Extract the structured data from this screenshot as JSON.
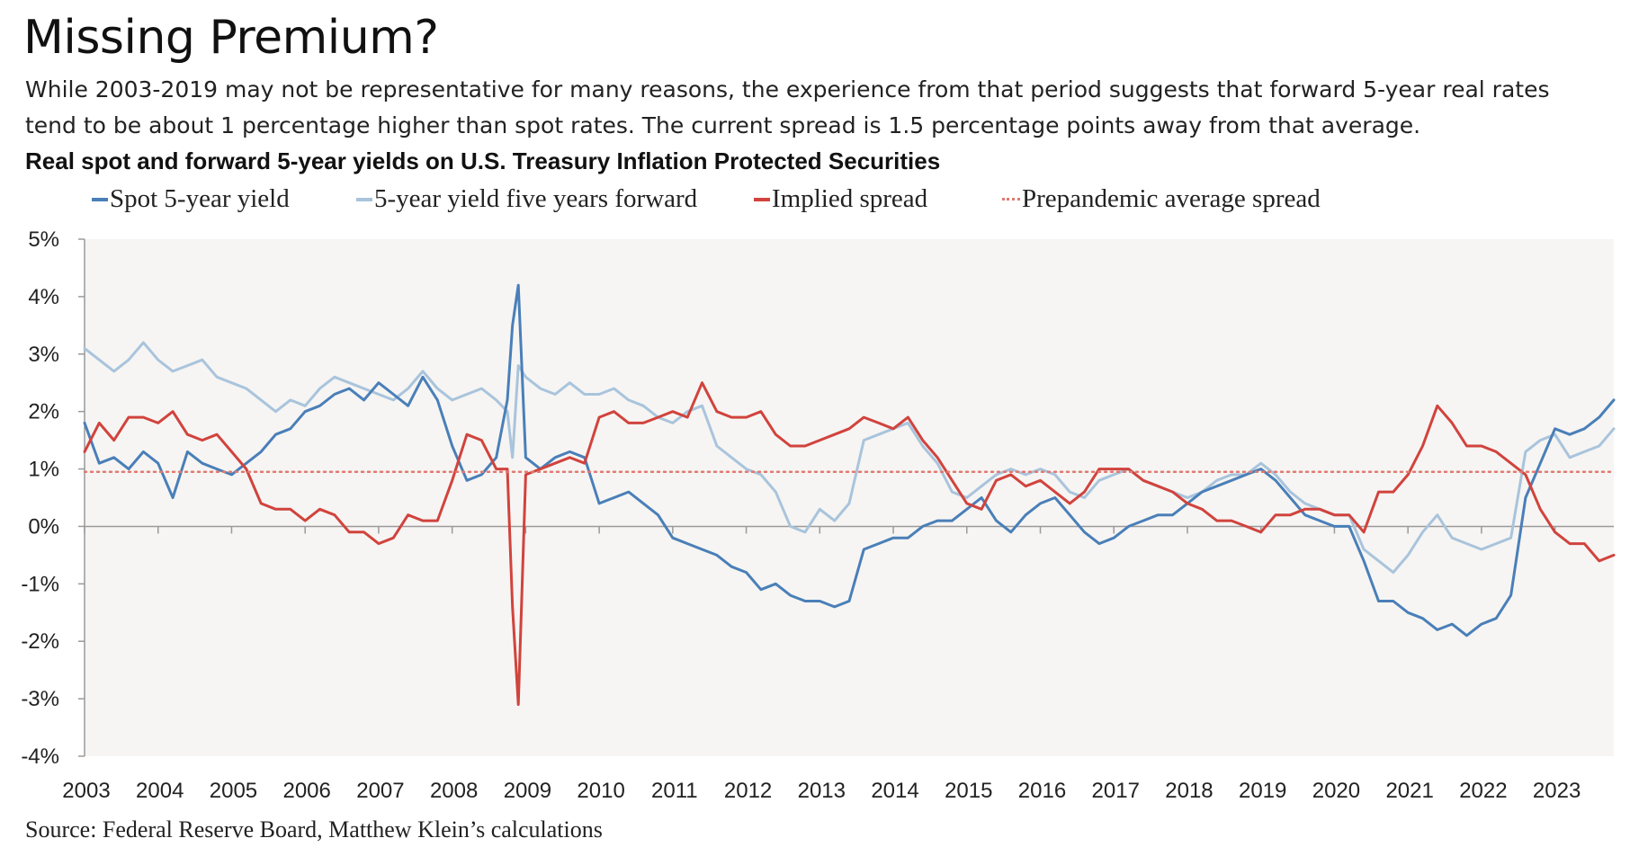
{
  "header": {
    "title": "Missing Premium?",
    "subtitle_lines": [
      "While 2003-2019 may not be representative for many reasons, the experience from that period suggests that forward 5-year real rates",
      "tend to be about 1 percentage higher than spot rates. The current spread is 1.5 percentage points away from that average."
    ]
  },
  "source": "Source: Federal Reserve Board, Matthew Klein’s calculations",
  "chart_data": {
    "type": "line",
    "title": "Real spot and forward 5-year yields on U.S. Treasury Inflation Protected Securities",
    "ylim": [
      -4,
      5
    ],
    "xlim": [
      2003,
      2023.8
    ],
    "y_ticks": [
      5,
      4,
      3,
      2,
      1,
      0,
      -1,
      -2,
      -3,
      -4
    ],
    "y_tick_labels": [
      "5%",
      "4%",
      "3%",
      "2%",
      "1%",
      "0%",
      "-1%",
      "-2%",
      "-3%",
      "-4%"
    ],
    "x_ticks": [
      2003,
      2004,
      2005,
      2006,
      2007,
      2008,
      2009,
      2010,
      2011,
      2012,
      2013,
      2014,
      2015,
      2016,
      2017,
      2018,
      2019,
      2020,
      2021,
      2022,
      2023
    ],
    "x_tick_labels": [
      "2003",
      "2004",
      "2005",
      "2006",
      "2007",
      "2008",
      "2009",
      "2010",
      "2011",
      "2012",
      "2013",
      "2014",
      "2015",
      "2016",
      "2017",
      "2018",
      "2019",
      "2020",
      "2021",
      "2022",
      "2023"
    ],
    "grid": false,
    "legend_position": "top",
    "series": [
      {
        "name": "Spot 5-year yield",
        "color": "#4a7fb8",
        "style": "solid",
        "x": [
          2003.0,
          2003.2,
          2003.4,
          2003.6,
          2003.8,
          2004.0,
          2004.2,
          2004.4,
          2004.6,
          2004.8,
          2005.0,
          2005.2,
          2005.4,
          2005.6,
          2005.8,
          2006.0,
          2006.2,
          2006.4,
          2006.6,
          2006.8,
          2007.0,
          2007.2,
          2007.4,
          2007.6,
          2007.8,
          2008.0,
          2008.2,
          2008.4,
          2008.6,
          2008.75,
          2008.82,
          2008.9,
          2009.0,
          2009.2,
          2009.4,
          2009.6,
          2009.8,
          2010.0,
          2010.2,
          2010.4,
          2010.6,
          2010.8,
          2011.0,
          2011.2,
          2011.4,
          2011.6,
          2011.8,
          2012.0,
          2012.2,
          2012.4,
          2012.6,
          2012.8,
          2013.0,
          2013.2,
          2013.4,
          2013.6,
          2013.8,
          2014.0,
          2014.2,
          2014.4,
          2014.6,
          2014.8,
          2015.0,
          2015.2,
          2015.4,
          2015.6,
          2015.8,
          2016.0,
          2016.2,
          2016.4,
          2016.6,
          2016.8,
          2017.0,
          2017.2,
          2017.4,
          2017.6,
          2017.8,
          2018.0,
          2018.2,
          2018.4,
          2018.6,
          2018.8,
          2019.0,
          2019.2,
          2019.4,
          2019.6,
          2019.8,
          2020.0,
          2020.2,
          2020.4,
          2020.6,
          2020.8,
          2021.0,
          2021.2,
          2021.4,
          2021.6,
          2021.8,
          2022.0,
          2022.2,
          2022.4,
          2022.6,
          2022.8,
          2023.0,
          2023.2,
          2023.4,
          2023.6,
          2023.8
        ],
        "y": [
          1.8,
          1.1,
          1.2,
          1.0,
          1.3,
          1.1,
          0.5,
          1.3,
          1.1,
          1.0,
          0.9,
          1.1,
          1.3,
          1.6,
          1.7,
          2.0,
          2.1,
          2.3,
          2.4,
          2.2,
          2.5,
          2.3,
          2.1,
          2.6,
          2.2,
          1.4,
          0.8,
          0.9,
          1.2,
          2.2,
          3.5,
          4.2,
          1.2,
          1.0,
          1.2,
          1.3,
          1.2,
          0.4,
          0.5,
          0.6,
          0.4,
          0.2,
          -0.2,
          -0.3,
          -0.4,
          -0.5,
          -0.7,
          -0.8,
          -1.1,
          -1.0,
          -1.2,
          -1.3,
          -1.3,
          -1.4,
          -1.3,
          -0.4,
          -0.3,
          -0.2,
          -0.2,
          0.0,
          0.1,
          0.1,
          0.3,
          0.5,
          0.1,
          -0.1,
          0.2,
          0.4,
          0.5,
          0.2,
          -0.1,
          -0.3,
          -0.2,
          0.0,
          0.1,
          0.2,
          0.2,
          0.4,
          0.6,
          0.7,
          0.8,
          0.9,
          1.0,
          0.8,
          0.5,
          0.2,
          0.1,
          0.0,
          0.0,
          -0.6,
          -1.3,
          -1.3,
          -1.5,
          -1.6,
          -1.8,
          -1.7,
          -1.9,
          -1.7,
          -1.6,
          -1.2,
          0.5,
          1.1,
          1.7,
          1.6,
          1.7,
          1.9,
          2.2
        ]
      },
      {
        "name": "5-year yield five years forward",
        "color": "#a9c4dc",
        "style": "solid",
        "x": [
          2003.0,
          2003.2,
          2003.4,
          2003.6,
          2003.8,
          2004.0,
          2004.2,
          2004.4,
          2004.6,
          2004.8,
          2005.0,
          2005.2,
          2005.4,
          2005.6,
          2005.8,
          2006.0,
          2006.2,
          2006.4,
          2006.6,
          2006.8,
          2007.0,
          2007.2,
          2007.4,
          2007.6,
          2007.8,
          2008.0,
          2008.2,
          2008.4,
          2008.6,
          2008.75,
          2008.82,
          2008.9,
          2009.0,
          2009.2,
          2009.4,
          2009.6,
          2009.8,
          2010.0,
          2010.2,
          2010.4,
          2010.6,
          2010.8,
          2011.0,
          2011.2,
          2011.4,
          2011.6,
          2011.8,
          2012.0,
          2012.2,
          2012.4,
          2012.6,
          2012.8,
          2013.0,
          2013.2,
          2013.4,
          2013.6,
          2013.8,
          2014.0,
          2014.2,
          2014.4,
          2014.6,
          2014.8,
          2015.0,
          2015.2,
          2015.4,
          2015.6,
          2015.8,
          2016.0,
          2016.2,
          2016.4,
          2016.6,
          2016.8,
          2017.0,
          2017.2,
          2017.4,
          2017.6,
          2017.8,
          2018.0,
          2018.2,
          2018.4,
          2018.6,
          2018.8,
          2019.0,
          2019.2,
          2019.4,
          2019.6,
          2019.8,
          2020.0,
          2020.2,
          2020.4,
          2020.6,
          2020.8,
          2021.0,
          2021.2,
          2021.4,
          2021.6,
          2021.8,
          2022.0,
          2022.2,
          2022.4,
          2022.6,
          2022.8,
          2023.0,
          2023.2,
          2023.4,
          2023.6,
          2023.8
        ],
        "y": [
          3.1,
          2.9,
          2.7,
          2.9,
          3.2,
          2.9,
          2.7,
          2.8,
          2.9,
          2.6,
          2.5,
          2.4,
          2.2,
          2.0,
          2.2,
          2.1,
          2.4,
          2.6,
          2.5,
          2.4,
          2.3,
          2.2,
          2.4,
          2.7,
          2.4,
          2.2,
          2.3,
          2.4,
          2.2,
          2.0,
          1.2,
          2.8,
          2.6,
          2.4,
          2.3,
          2.5,
          2.3,
          2.3,
          2.4,
          2.2,
          2.1,
          1.9,
          1.8,
          2.0,
          2.1,
          1.4,
          1.2,
          1.0,
          0.9,
          0.6,
          0.0,
          -0.1,
          0.3,
          0.1,
          0.4,
          1.5,
          1.6,
          1.7,
          1.8,
          1.4,
          1.1,
          0.6,
          0.5,
          0.7,
          0.9,
          1.0,
          0.9,
          1.0,
          0.9,
          0.6,
          0.5,
          0.8,
          0.9,
          1.0,
          0.8,
          0.7,
          0.6,
          0.5,
          0.6,
          0.8,
          0.9,
          0.9,
          1.1,
          0.9,
          0.6,
          0.4,
          0.3,
          0.2,
          0.2,
          -0.4,
          -0.6,
          -0.8,
          -0.5,
          -0.1,
          0.2,
          -0.2,
          -0.3,
          -0.4,
          -0.3,
          -0.2,
          1.3,
          1.5,
          1.6,
          1.2,
          1.3,
          1.4,
          1.7
        ]
      },
      {
        "name": "Implied spread",
        "color": "#d1433d",
        "style": "solid",
        "x": [
          2003.0,
          2003.2,
          2003.4,
          2003.6,
          2003.8,
          2004.0,
          2004.2,
          2004.4,
          2004.6,
          2004.8,
          2005.0,
          2005.2,
          2005.4,
          2005.6,
          2005.8,
          2006.0,
          2006.2,
          2006.4,
          2006.6,
          2006.8,
          2007.0,
          2007.2,
          2007.4,
          2007.6,
          2007.8,
          2008.0,
          2008.2,
          2008.4,
          2008.6,
          2008.75,
          2008.82,
          2008.9,
          2009.0,
          2009.2,
          2009.4,
          2009.6,
          2009.8,
          2010.0,
          2010.2,
          2010.4,
          2010.6,
          2010.8,
          2011.0,
          2011.2,
          2011.4,
          2011.6,
          2011.8,
          2012.0,
          2012.2,
          2012.4,
          2012.6,
          2012.8,
          2013.0,
          2013.2,
          2013.4,
          2013.6,
          2013.8,
          2014.0,
          2014.2,
          2014.4,
          2014.6,
          2014.8,
          2015.0,
          2015.2,
          2015.4,
          2015.6,
          2015.8,
          2016.0,
          2016.2,
          2016.4,
          2016.6,
          2016.8,
          2017.0,
          2017.2,
          2017.4,
          2017.6,
          2017.8,
          2018.0,
          2018.2,
          2018.4,
          2018.6,
          2018.8,
          2019.0,
          2019.2,
          2019.4,
          2019.6,
          2019.8,
          2020.0,
          2020.2,
          2020.4,
          2020.6,
          2020.8,
          2021.0,
          2021.2,
          2021.4,
          2021.6,
          2021.8,
          2022.0,
          2022.2,
          2022.4,
          2022.6,
          2022.8,
          2023.0,
          2023.2,
          2023.4,
          2023.6,
          2023.8
        ],
        "y": [
          1.3,
          1.8,
          1.5,
          1.9,
          1.9,
          1.8,
          2.0,
          1.6,
          1.5,
          1.6,
          1.3,
          1.0,
          0.4,
          0.3,
          0.3,
          0.1,
          0.3,
          0.2,
          -0.1,
          -0.1,
          -0.3,
          -0.2,
          0.2,
          0.1,
          0.1,
          0.8,
          1.6,
          1.5,
          1.0,
          1.0,
          -1.4,
          -3.1,
          0.9,
          1.0,
          1.1,
          1.2,
          1.1,
          1.9,
          2.0,
          1.8,
          1.8,
          1.9,
          2.0,
          1.9,
          2.5,
          2.0,
          1.9,
          1.9,
          2.0,
          1.6,
          1.4,
          1.4,
          1.5,
          1.6,
          1.7,
          1.9,
          1.8,
          1.7,
          1.9,
          1.5,
          1.2,
          0.8,
          0.4,
          0.3,
          0.8,
          0.9,
          0.7,
          0.8,
          0.6,
          0.4,
          0.6,
          1.0,
          1.0,
          1.0,
          0.8,
          0.7,
          0.6,
          0.4,
          0.3,
          0.1,
          0.1,
          0.0,
          -0.1,
          0.2,
          0.2,
          0.3,
          0.3,
          0.2,
          0.2,
          -0.1,
          0.6,
          0.6,
          0.9,
          1.4,
          2.1,
          1.8,
          1.4,
          1.4,
          1.3,
          1.1,
          0.9,
          0.3,
          -0.1,
          -0.3,
          -0.3,
          -0.6,
          -0.5
        ]
      },
      {
        "name": "Prepandemic average spread",
        "color": "#e07a72",
        "style": "dotted",
        "x": [
          2003.0,
          2023.8
        ],
        "y": [
          0.95,
          0.95
        ]
      }
    ]
  }
}
